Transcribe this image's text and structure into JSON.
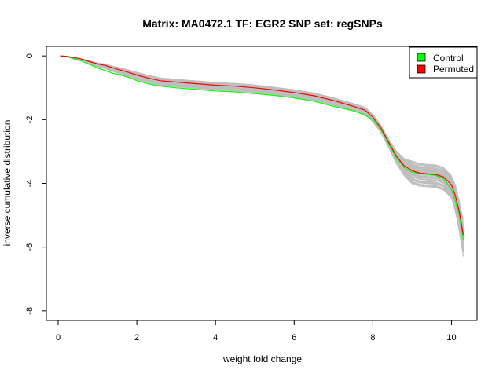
{
  "chart_data": {
    "type": "line",
    "title": "Matrix: MA0472.1 TF: EGR2 SNP set: regSNPs",
    "xlabel": "weight fold change",
    "ylabel": "inverse cumulative distribution",
    "xlim": [
      -0.3,
      10.65
    ],
    "ylim": [
      -8.3,
      0.3
    ],
    "x_ticks": [
      0,
      2,
      4,
      6,
      8,
      10
    ],
    "y_ticks": [
      0,
      -2,
      -4,
      -6,
      -8
    ],
    "grid": false,
    "legend": {
      "position": "top-right",
      "entries": [
        {
          "label": "Control",
          "color": "#00ff00"
        },
        {
          "label": "Permuted",
          "color": "#ff0000"
        }
      ]
    },
    "series": [
      {
        "name": "Control",
        "color": "#00ff00",
        "x": [
          0.05,
          0.2,
          0.4,
          0.6,
          0.8,
          1.0,
          1.2,
          1.4,
          1.6,
          1.8,
          2.0,
          2.3,
          2.6,
          3.0,
          3.5,
          4.0,
          4.5,
          5.0,
          5.5,
          6.0,
          6.5,
          7.0,
          7.5,
          7.8,
          8.0,
          8.2,
          8.4,
          8.6,
          8.8,
          9.0,
          9.2,
          9.4,
          9.6,
          9.8,
          10.0,
          10.1,
          10.2,
          10.3
        ],
        "y": [
          0.0,
          -0.02,
          -0.08,
          -0.16,
          -0.27,
          -0.38,
          -0.46,
          -0.55,
          -0.6,
          -0.68,
          -0.78,
          -0.88,
          -0.95,
          -1.0,
          -1.05,
          -1.1,
          -1.13,
          -1.18,
          -1.24,
          -1.32,
          -1.42,
          -1.58,
          -1.72,
          -1.85,
          -2.0,
          -2.3,
          -2.75,
          -3.2,
          -3.5,
          -3.65,
          -3.7,
          -3.72,
          -3.75,
          -3.85,
          -4.2,
          -4.55,
          -5.0,
          -5.78
        ]
      },
      {
        "name": "Permuted",
        "color": "#ff0000",
        "x": [
          0.05,
          0.2,
          0.4,
          0.6,
          0.8,
          1.0,
          1.2,
          1.4,
          1.6,
          1.8,
          2.0,
          2.3,
          2.6,
          3.0,
          3.5,
          4.0,
          4.5,
          5.0,
          5.5,
          6.0,
          6.5,
          7.0,
          7.5,
          7.8,
          8.0,
          8.2,
          8.4,
          8.6,
          8.8,
          9.0,
          9.2,
          9.4,
          9.6,
          9.8,
          10.0,
          10.1,
          10.2,
          10.3
        ],
        "y": [
          0.0,
          -0.01,
          -0.05,
          -0.1,
          -0.18,
          -0.25,
          -0.3,
          -0.38,
          -0.45,
          -0.52,
          -0.6,
          -0.7,
          -0.78,
          -0.82,
          -0.87,
          -0.92,
          -0.95,
          -1.0,
          -1.07,
          -1.15,
          -1.25,
          -1.4,
          -1.58,
          -1.7,
          -1.92,
          -2.25,
          -2.7,
          -3.15,
          -3.45,
          -3.6,
          -3.68,
          -3.7,
          -3.72,
          -3.8,
          -4.05,
          -4.4,
          -4.9,
          -5.62
        ]
      }
    ]
  }
}
